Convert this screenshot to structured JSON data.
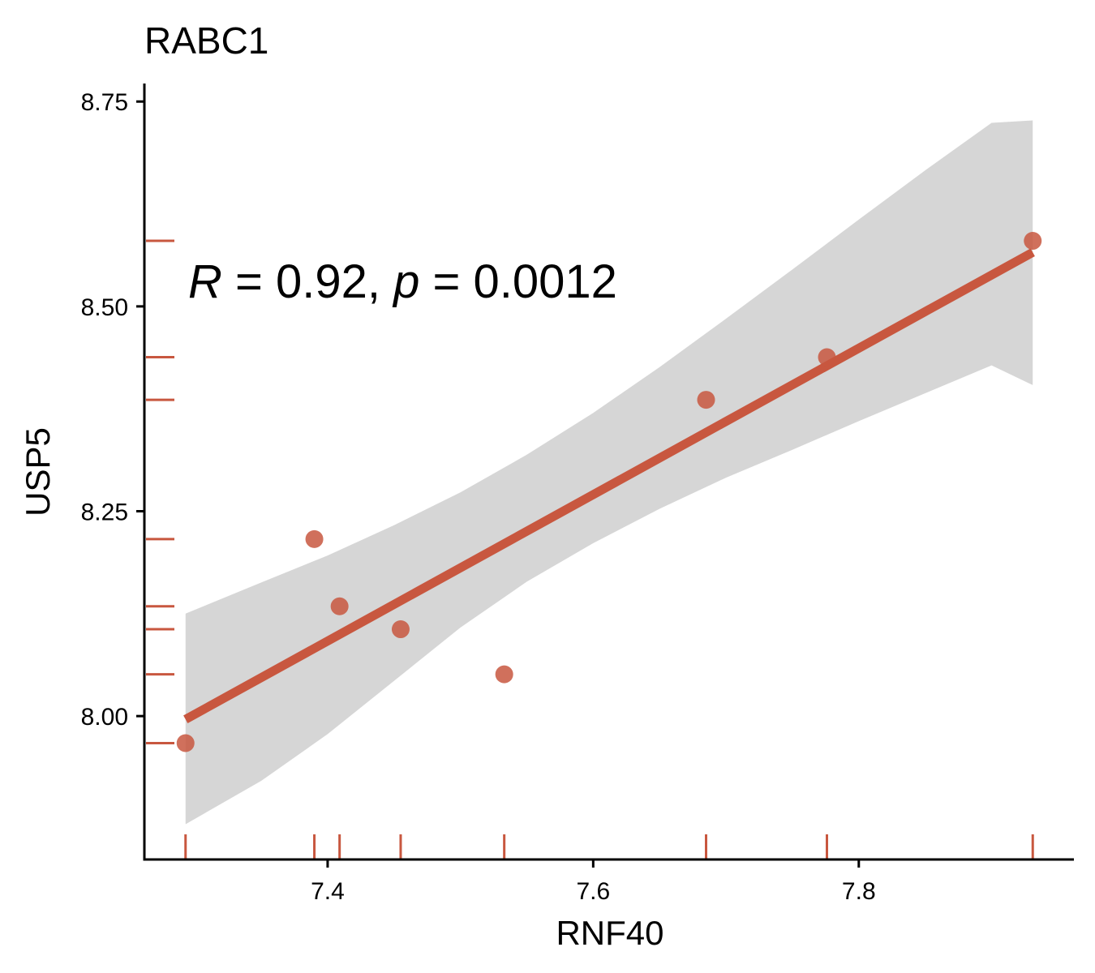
{
  "chart_data": {
    "type": "scatter",
    "title": "RABC1",
    "xlabel": "RNF40",
    "ylabel": "USP5",
    "xlim": [
      7.262,
      7.962
    ],
    "ylim": [
      7.825,
      8.772
    ],
    "xticks": [
      7.4,
      7.6,
      7.8
    ],
    "xtick_labels": [
      "7.4",
      "7.6",
      "7.8"
    ],
    "yticks": [
      8.0,
      8.25,
      8.5,
      8.75
    ],
    "ytick_labels": [
      "8.00",
      "8.25",
      "8.50",
      "8.75"
    ],
    "points": [
      {
        "x": 7.293,
        "y": 7.967
      },
      {
        "x": 7.39,
        "y": 8.216
      },
      {
        "x": 7.409,
        "y": 8.134
      },
      {
        "x": 7.455,
        "y": 8.106
      },
      {
        "x": 7.533,
        "y": 8.051
      },
      {
        "x": 7.685,
        "y": 8.386
      },
      {
        "x": 7.776,
        "y": 8.438
      },
      {
        "x": 7.931,
        "y": 8.58
      }
    ],
    "regression": {
      "x": [
        7.293,
        7.931
      ],
      "y": [
        7.996,
        8.566
      ]
    },
    "confidence_band": {
      "x": [
        7.293,
        7.35,
        7.4,
        7.45,
        7.5,
        7.55,
        7.6,
        7.65,
        7.7,
        7.75,
        7.8,
        7.85,
        7.9,
        7.931
      ],
      "upper": [
        8.125,
        8.163,
        8.196,
        8.233,
        8.273,
        8.319,
        8.37,
        8.426,
        8.485,
        8.545,
        8.606,
        8.666,
        8.724,
        8.727
      ],
      "lower": [
        7.868,
        7.921,
        7.978,
        8.043,
        8.108,
        8.164,
        8.211,
        8.253,
        8.291,
        8.325,
        8.36,
        8.394,
        8.428,
        8.404
      ]
    },
    "annotation": {
      "r_symbol": "R",
      "r_text": " = 0.92, ",
      "p_symbol": "p",
      "p_text": " = 0.0012"
    },
    "rug": true,
    "grid": false,
    "colors": {
      "point": "#c8573f",
      "line": "#c8573f",
      "band": "#d6d6d6",
      "rug": "#c8573f",
      "axis": "#000000"
    }
  }
}
